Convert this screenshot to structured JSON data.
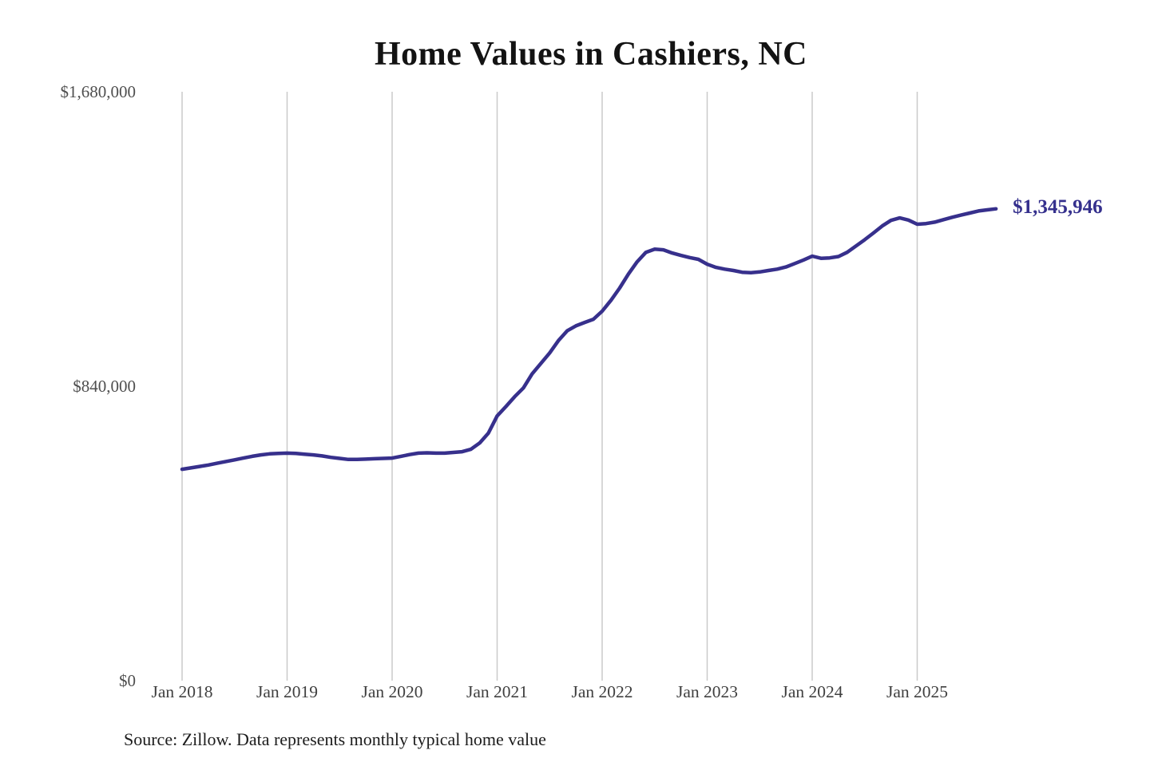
{
  "chart": {
    "title": "Home Values in Cashiers, NC",
    "end_label": "$1,345,946",
    "source_note": "Source: Zillow. Data represents monthly typical home value",
    "colors": {
      "line": "#37308c",
      "grid": "#cacaca",
      "title_text": "#131313",
      "y_tick_text": "#4f4f4f",
      "x_tick_text": "#404040",
      "end_label_text": "#35308d",
      "source_text": "#1c1c1c",
      "background": "#ffffff"
    }
  },
  "chart_data": {
    "type": "line",
    "title": "Home Values in Cashiers, NC",
    "series_name": "Monthly typical home value (USD)",
    "legend": "none",
    "grid": "vertical-only",
    "ylim": [
      0,
      1680000
    ],
    "yticks": [
      {
        "label": "$1,680,000",
        "value": 1680000
      },
      {
        "label": "$840,000",
        "value": 840000
      },
      {
        "label": "$0",
        "value": 0
      }
    ],
    "xticks": [
      "Jan 2018",
      "Jan 2019",
      "Jan 2020",
      "Jan 2021",
      "Jan 2022",
      "Jan 2023",
      "Jan 2024",
      "Jan 2025"
    ],
    "xtick_month_interval": 12,
    "final_value_label": "$1,345,946",
    "source": "Source: Zillow. Data represents monthly typical home value",
    "x": [
      "Jan 2018",
      "Feb 2018",
      "Mar 2018",
      "Apr 2018",
      "May 2018",
      "Jun 2018",
      "Jul 2018",
      "Aug 2018",
      "Sep 2018",
      "Oct 2018",
      "Nov 2018",
      "Dec 2018",
      "Jan 2019",
      "Feb 2019",
      "Mar 2019",
      "Apr 2019",
      "May 2019",
      "Jun 2019",
      "Jul 2019",
      "Aug 2019",
      "Sep 2019",
      "Oct 2019",
      "Nov 2019",
      "Dec 2019",
      "Jan 2020",
      "Feb 2020",
      "Mar 2020",
      "Apr 2020",
      "May 2020",
      "Jun 2020",
      "Jul 2020",
      "Aug 2020",
      "Sep 2020",
      "Oct 2020",
      "Nov 2020",
      "Dec 2020",
      "Jan 2021",
      "Feb 2021",
      "Mar 2021",
      "Apr 2021",
      "May 2021",
      "Jun 2021",
      "Jul 2021",
      "Aug 2021",
      "Sep 2021",
      "Oct 2021",
      "Nov 2021",
      "Dec 2021",
      "Jan 2022",
      "Feb 2022",
      "Mar 2022",
      "Apr 2022",
      "May 2022",
      "Jun 2022",
      "Jul 2022",
      "Aug 2022",
      "Sep 2022",
      "Oct 2022",
      "Nov 2022",
      "Dec 2022",
      "Jan 2023",
      "Feb 2023",
      "Mar 2023",
      "Apr 2023",
      "May 2023",
      "Jun 2023",
      "Jul 2023",
      "Aug 2023",
      "Sep 2023",
      "Oct 2023",
      "Nov 2023",
      "Dec 2023",
      "Jan 2024",
      "Feb 2024",
      "Mar 2024",
      "Apr 2024",
      "May 2024",
      "Jun 2024",
      "Jul 2024",
      "Aug 2024",
      "Sep 2024",
      "Oct 2024",
      "Nov 2024",
      "Dec 2024",
      "Jan 2025",
      "Feb 2025",
      "Mar 2025",
      "Apr 2025",
      "May 2025",
      "Jun 2025",
      "Jul 2025",
      "Aug 2025",
      "Sep 2025",
      "Oct 2025"
    ],
    "values": [
      603000,
      607000,
      611000,
      615000,
      620000,
      625000,
      630000,
      635000,
      640000,
      644000,
      647000,
      648000,
      649000,
      648000,
      646000,
      644000,
      641000,
      637000,
      634000,
      631000,
      631000,
      632000,
      633000,
      634000,
      635000,
      640000,
      645000,
      649000,
      650000,
      649000,
      649000,
      651000,
      653000,
      660000,
      678000,
      706000,
      755000,
      782000,
      810000,
      835000,
      875000,
      905000,
      935000,
      970000,
      998000,
      1012000,
      1022000,
      1031000,
      1054000,
      1085000,
      1120000,
      1160000,
      1195000,
      1222000,
      1231000,
      1229000,
      1220000,
      1213000,
      1207000,
      1202000,
      1188000,
      1179000,
      1174000,
      1170000,
      1165000,
      1164000,
      1166000,
      1170000,
      1174000,
      1180000,
      1190000,
      1200000,
      1211000,
      1205000,
      1206000,
      1210000,
      1222000,
      1240000,
      1258000,
      1277000,
      1297000,
      1313000,
      1320000,
      1314000,
      1302000,
      1304000,
      1308000,
      1315000,
      1322000,
      1328000,
      1334000,
      1340000,
      1343000,
      1345946
    ]
  }
}
